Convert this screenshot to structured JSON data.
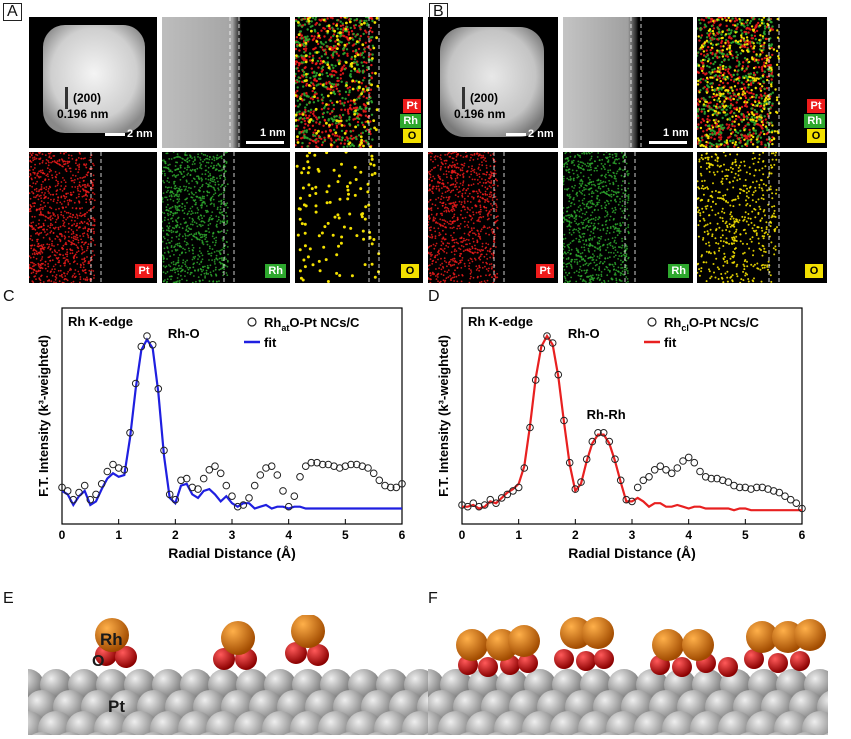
{
  "panels": {
    "A": {
      "letter": "A",
      "lattice_label": "(200)",
      "lattice_spacing": "0.196 nm",
      "scale_big": "2 nm",
      "scale_small": "1 nm"
    },
    "B": {
      "letter": "B",
      "lattice_label": "(200)",
      "lattice_spacing": "0.196 nm",
      "scale_big": "2 nm",
      "scale_small": "1 nm"
    },
    "C": {
      "letter": "C"
    },
    "D": {
      "letter": "D"
    },
    "E": {
      "letter": "E"
    },
    "F": {
      "letter": "F"
    }
  },
  "element_tags": {
    "pt": "Pt",
    "rh": "Rh",
    "o": "O"
  },
  "colors": {
    "pt": "#ee1b1b",
    "rh": "#2ea82e",
    "o": "#f3e000",
    "fit_c": "#1f1fe0",
    "fit_d": "#e82020",
    "rh_atom": "#e27a10",
    "o_atom": "#d60000",
    "pt_atom": "#a8a8a8"
  },
  "model": {
    "rh_label": "Rh",
    "o_label": "O",
    "pt_label": "Pt"
  },
  "chart_data": [
    {
      "type": "line",
      "panel": "C",
      "title": "Rh K-edge",
      "xlabel": "Radial Distance (Å)",
      "ylabel": "F.T. Intensity (k³-weighted)",
      "xlim": [
        0,
        6
      ],
      "xticks": [
        0,
        1,
        2,
        3,
        4,
        5,
        6
      ],
      "peak_label": "Rh-O",
      "legend": {
        "data_prefix": "Rh",
        "data_sub": "at",
        "data_suffix": "O-Pt NCs/C",
        "fit": "fit"
      },
      "series": [
        {
          "name": "RhatO-Pt NCs/C",
          "style": "open-circles",
          "x": [
            0,
            0.1,
            0.2,
            0.3,
            0.4,
            0.5,
            0.6,
            0.7,
            0.8,
            0.9,
            1.0,
            1.1,
            1.2,
            1.3,
            1.4,
            1.5,
            1.6,
            1.7,
            1.8,
            1.9,
            2.0,
            2.1,
            2.2,
            2.3,
            2.4,
            2.5,
            2.6,
            2.7,
            2.8,
            2.9,
            3.0,
            3.1,
            3.2,
            3.3,
            3.4,
            3.5,
            3.6,
            3.7,
            3.8,
            3.9,
            4.0,
            4.1,
            4.2,
            4.3,
            4.4,
            4.5,
            4.6,
            4.7,
            4.8,
            4.9,
            5.0,
            5.1,
            5.2,
            5.3,
            5.4,
            5.5,
            5.6,
            5.7,
            5.8,
            5.9,
            6.0
          ],
          "y": [
            0.14,
            0.12,
            0.07,
            0.11,
            0.15,
            0.07,
            0.1,
            0.16,
            0.23,
            0.27,
            0.25,
            0.24,
            0.45,
            0.73,
            0.94,
            1.0,
            0.95,
            0.7,
            0.35,
            0.1,
            0.07,
            0.18,
            0.19,
            0.14,
            0.13,
            0.19,
            0.24,
            0.26,
            0.22,
            0.15,
            0.09,
            0.03,
            0.04,
            0.08,
            0.15,
            0.21,
            0.25,
            0.26,
            0.21,
            0.12,
            0.03,
            0.09,
            0.2,
            0.26,
            0.28,
            0.28,
            0.27,
            0.27,
            0.26,
            0.25,
            0.26,
            0.27,
            0.27,
            0.26,
            0.25,
            0.22,
            0.18,
            0.15,
            0.14,
            0.14,
            0.16
          ]
        },
        {
          "name": "fit",
          "style": "line",
          "x": [
            0,
            0.1,
            0.2,
            0.3,
            0.4,
            0.5,
            0.6,
            0.7,
            0.8,
            0.9,
            1.0,
            1.1,
            1.2,
            1.3,
            1.4,
            1.5,
            1.6,
            1.7,
            1.8,
            1.9,
            2.0,
            2.1,
            2.2,
            2.3,
            2.4,
            2.5,
            2.6,
            2.7,
            2.8,
            2.9,
            3.0,
            3.1,
            3.2,
            3.3,
            3.4,
            3.5,
            3.6,
            3.7,
            3.8,
            3.9,
            4.0,
            4.1,
            4.2,
            4.3,
            4.4,
            4.5,
            4.6,
            4.7,
            4.8,
            4.9,
            5.0,
            5.1,
            5.2,
            5.3,
            5.4,
            5.5,
            5.6,
            5.7,
            5.8,
            5.9,
            6.0
          ],
          "y": [
            0.12,
            0.1,
            0.04,
            0.09,
            0.12,
            0.04,
            0.06,
            0.13,
            0.19,
            0.22,
            0.2,
            0.21,
            0.42,
            0.7,
            0.92,
            0.98,
            0.93,
            0.68,
            0.32,
            0.08,
            0.05,
            0.15,
            0.16,
            0.1,
            0.08,
            0.12,
            0.13,
            0.1,
            0.06,
            0.09,
            0.05,
            0.03,
            0.05,
            0.05,
            0.02,
            0.03,
            0.04,
            0.02,
            0.03,
            0.03,
            0.02,
            0.03,
            0.03,
            0.02,
            0.02,
            0.02,
            0.02,
            0.02,
            0.02,
            0.02,
            0.02,
            0.02,
            0.02,
            0.02,
            0.02,
            0.02,
            0.02,
            0.02,
            0.02,
            0.02,
            0.02
          ]
        }
      ]
    },
    {
      "type": "line",
      "panel": "D",
      "title": "Rh K-edge",
      "xlabel": "Radial Distance (Å)",
      "ylabel": "F.T. Intensity (k³-weighted)",
      "xlim": [
        0,
        6
      ],
      "xticks": [
        0,
        1,
        2,
        3,
        4,
        5,
        6
      ],
      "peak_label": "Rh-O",
      "peak2_label": "Rh-Rh",
      "legend": {
        "data_prefix": "Rh",
        "data_sub": "cl",
        "data_suffix": "O-Pt NCs/C",
        "fit": "fit"
      },
      "series": [
        {
          "name": "RhclO-Pt NCs/C",
          "style": "open-circles",
          "x": [
            0,
            0.1,
            0.2,
            0.3,
            0.4,
            0.5,
            0.6,
            0.7,
            0.8,
            0.9,
            1.0,
            1.1,
            1.2,
            1.3,
            1.4,
            1.5,
            1.6,
            1.7,
            1.8,
            1.9,
            2.0,
            2.1,
            2.2,
            2.3,
            2.4,
            2.5,
            2.6,
            2.7,
            2.8,
            2.9,
            3.0,
            3.1,
            3.2,
            3.3,
            3.4,
            3.5,
            3.6,
            3.7,
            3.8,
            3.9,
            4.0,
            4.1,
            4.2,
            4.3,
            4.4,
            4.5,
            4.6,
            4.7,
            4.8,
            4.9,
            5.0,
            5.1,
            5.2,
            5.3,
            5.4,
            5.5,
            5.6,
            5.7,
            5.8,
            5.9,
            6.0
          ],
          "y": [
            0.04,
            0.03,
            0.05,
            0.03,
            0.04,
            0.07,
            0.05,
            0.08,
            0.1,
            0.12,
            0.14,
            0.25,
            0.48,
            0.75,
            0.93,
            1.0,
            0.96,
            0.78,
            0.52,
            0.28,
            0.13,
            0.17,
            0.3,
            0.4,
            0.45,
            0.45,
            0.4,
            0.3,
            0.18,
            0.07,
            0.06,
            0.14,
            0.18,
            0.2,
            0.24,
            0.26,
            0.24,
            0.22,
            0.25,
            0.29,
            0.31,
            0.28,
            0.23,
            0.2,
            0.19,
            0.19,
            0.18,
            0.17,
            0.15,
            0.14,
            0.14,
            0.13,
            0.14,
            0.14,
            0.13,
            0.12,
            0.11,
            0.09,
            0.07,
            0.05,
            0.02
          ]
        },
        {
          "name": "fit",
          "style": "line",
          "x": [
            0,
            0.1,
            0.2,
            0.3,
            0.4,
            0.5,
            0.6,
            0.7,
            0.8,
            0.9,
            1.0,
            1.1,
            1.2,
            1.3,
            1.4,
            1.5,
            1.6,
            1.7,
            1.8,
            1.9,
            2.0,
            2.1,
            2.2,
            2.3,
            2.4,
            2.5,
            2.6,
            2.7,
            2.8,
            2.9,
            3.0,
            3.1,
            3.2,
            3.3,
            3.4,
            3.5,
            3.6,
            3.7,
            3.8,
            3.9,
            4.0,
            4.1,
            4.2,
            4.3,
            4.4,
            4.5,
            4.6,
            4.7,
            4.8,
            4.9,
            5.0,
            5.1,
            5.2,
            5.3,
            5.4,
            5.5,
            5.6,
            5.7,
            5.8,
            5.9,
            6.0
          ],
          "y": [
            0.03,
            0.03,
            0.04,
            0.02,
            0.03,
            0.06,
            0.05,
            0.08,
            0.11,
            0.13,
            0.16,
            0.26,
            0.49,
            0.76,
            0.94,
            1.0,
            0.95,
            0.77,
            0.51,
            0.27,
            0.12,
            0.16,
            0.29,
            0.39,
            0.44,
            0.44,
            0.39,
            0.29,
            0.17,
            0.06,
            0.06,
            0.08,
            0.06,
            0.03,
            0.05,
            0.05,
            0.03,
            0.03,
            0.04,
            0.03,
            0.02,
            0.03,
            0.03,
            0.02,
            0.02,
            0.02,
            0.02,
            0.02,
            0.01,
            0.02,
            0.02,
            0.01,
            0.01,
            0.01,
            0.01,
            0.01,
            0.01,
            0.01,
            0.01,
            0.01,
            0.01
          ]
        }
      ]
    }
  ]
}
